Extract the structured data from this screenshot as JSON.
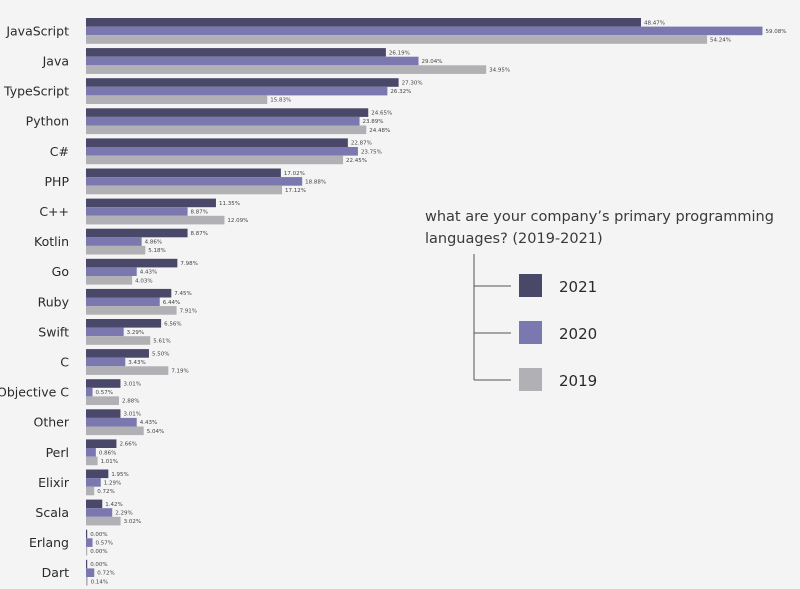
{
  "chart_data": {
    "type": "bar",
    "orientation": "horizontal",
    "title": "what are your company's primary programming languages? (2019-2021)",
    "title_lines": [
      "what are your company’s primary programming",
      "languages? (2019-2021)"
    ],
    "unit": "%",
    "xlim": [
      0,
      60
    ],
    "grid": false,
    "legend_placement": "right",
    "categories": [
      "JavaScript",
      "Java",
      "TypeScript",
      "Python",
      "C#",
      "PHP",
      "C++",
      "Kotlin",
      "Go",
      "Ruby",
      "Swift",
      "C",
      "Objective C",
      "Other",
      "Perl",
      "Elixir",
      "Scala",
      "Erlang",
      "Dart"
    ],
    "series": [
      {
        "name": "2021",
        "color": "#4a4868",
        "values": [
          48.47,
          26.19,
          27.3,
          24.65,
          22.87,
          17.02,
          11.35,
          8.87,
          7.98,
          7.45,
          6.56,
          5.5,
          3.01,
          3.01,
          2.66,
          1.95,
          1.42,
          0.0,
          0.0
        ]
      },
      {
        "name": "2020",
        "color": "#7b78b0",
        "values": [
          59.08,
          29.04,
          26.32,
          23.89,
          23.75,
          18.88,
          8.87,
          4.86,
          4.43,
          6.44,
          3.29,
          3.43,
          0.57,
          4.43,
          0.86,
          1.29,
          2.29,
          0.57,
          0.72
        ]
      },
      {
        "name": "2019",
        "color": "#b0b0b5",
        "values": [
          54.24,
          34.95,
          15.83,
          24.48,
          22.45,
          17.12,
          12.09,
          5.18,
          4.03,
          7.91,
          5.61,
          7.19,
          2.88,
          5.04,
          1.01,
          0.72,
          3.02,
          0.0,
          0.14
        ]
      }
    ]
  }
}
